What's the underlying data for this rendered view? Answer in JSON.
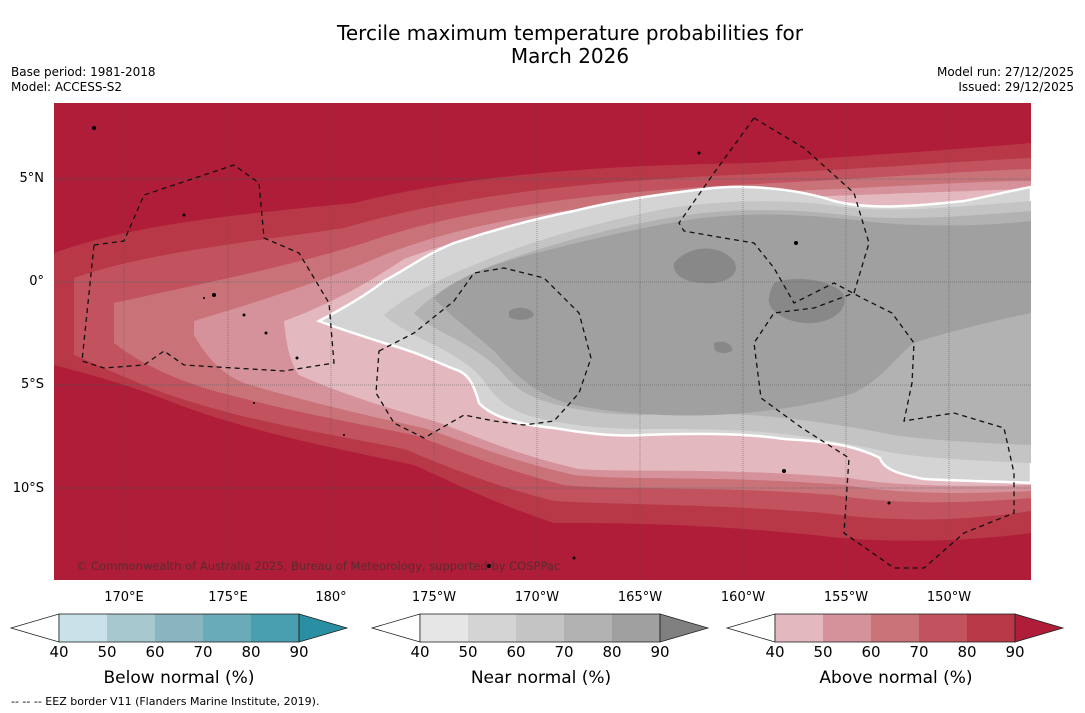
{
  "title": {
    "line1": "Tercile maximum temperature probabilities for",
    "line2": "March 2026"
  },
  "meta": {
    "base_period": "Base period: 1981-2018",
    "model": "Model: ACCESS-S2",
    "model_run": "Model run: 27/12/2025",
    "issued": "Issued: 29/12/2025"
  },
  "map": {
    "copyright": "© Commonwealth of Australia 2025, Bureau of Meteorology, supported by COSPPac",
    "lat_labels": [
      "5°N",
      "0°",
      "5°S",
      "10°S"
    ],
    "lon_labels": [
      "170°E",
      "175°E",
      "180°",
      "175°W",
      "170°W",
      "165°W",
      "160°W",
      "155°W",
      "150°W"
    ]
  },
  "colorbars": {
    "below": {
      "title": "Below normal (%)",
      "ticks": [
        "40",
        "50",
        "60",
        "70",
        "80",
        "90"
      ],
      "colors": [
        "#c9e1e8",
        "#a8c8cf",
        "#89b5c0",
        "#6aabb8",
        "#4a9fae",
        "#2b8fa3"
      ]
    },
    "near": {
      "title": "Near normal (%)",
      "ticks": [
        "40",
        "50",
        "60",
        "70",
        "80",
        "90"
      ],
      "colors": [
        "#e6e6e6",
        "#d4d4d4",
        "#c4c4c4",
        "#b2b2b2",
        "#a0a0a0",
        "#808080"
      ]
    },
    "above": {
      "title": "Above normal (%)",
      "ticks": [
        "40",
        "50",
        "60",
        "70",
        "80",
        "90"
      ],
      "colors": [
        "#e3b9bf",
        "#d6929b",
        "#c97379",
        "#c1525e",
        "#b83848",
        "#b01d39"
      ]
    }
  },
  "footnote": "--  --  -- EEZ border V11 (Flanders Marine Institute, 2019)."
}
